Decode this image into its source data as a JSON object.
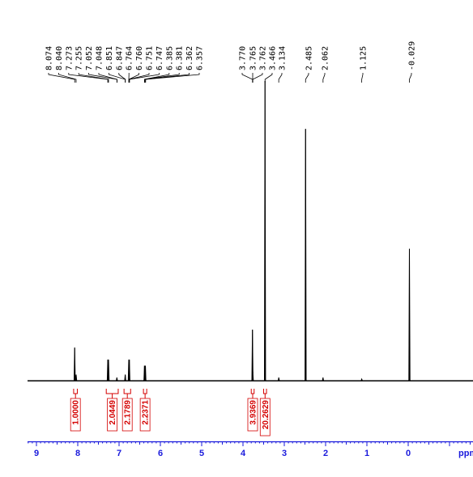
{
  "chart_data": {
    "type": "line",
    "title": "",
    "xlabel": "ppm",
    "ylabel": "",
    "x_reversed": true,
    "xlim": [
      9.0,
      -1.6
    ],
    "x_ticks": [
      "9",
      "8",
      "7",
      "6",
      "5",
      "4",
      "3",
      "2",
      "1",
      "0"
    ],
    "grid": false,
    "colors": {
      "spectrum": "#000000",
      "integral": "#d40000",
      "axis": "#1a1adc"
    },
    "peak_labels": [
      "8.074",
      "8.040",
      "7.273",
      "7.255",
      "7.052",
      "7.048",
      "6.851",
      "6.847",
      "6.764",
      "6.760",
      "6.751",
      "6.747",
      "6.385",
      "6.381",
      "6.362",
      "6.357",
      "3.770",
      "3.765",
      "3.762",
      "3.466",
      "3.134",
      "2.485",
      "2.062",
      "1.125",
      "-0.029"
    ],
    "peaks": [
      {
        "ppm": 8.074,
        "height": 0.11
      },
      {
        "ppm": 8.04,
        "height": 0.02
      },
      {
        "ppm": 7.273,
        "height": 0.07
      },
      {
        "ppm": 7.255,
        "height": 0.07
      },
      {
        "ppm": 7.052,
        "height": 0.01
      },
      {
        "ppm": 6.851,
        "height": 0.02
      },
      {
        "ppm": 6.764,
        "height": 0.07
      },
      {
        "ppm": 6.751,
        "height": 0.07
      },
      {
        "ppm": 6.385,
        "height": 0.05
      },
      {
        "ppm": 6.362,
        "height": 0.05
      },
      {
        "ppm": 3.77,
        "height": 0.17
      },
      {
        "ppm": 3.762,
        "height": 0.03
      },
      {
        "ppm": 3.466,
        "height": 1.0
      },
      {
        "ppm": 3.134,
        "height": 0.01
      },
      {
        "ppm": 2.485,
        "height": 0.84
      },
      {
        "ppm": 2.062,
        "height": 0.01
      },
      {
        "ppm": 1.125,
        "height": 0.005
      },
      {
        "ppm": -0.029,
        "height": 0.44
      }
    ],
    "integrals": [
      {
        "value": "1.0000",
        "from": 8.08,
        "to": 8.03
      },
      {
        "value": "2.0449",
        "from": 7.29,
        "to": 7.04
      },
      {
        "value": "2.1789",
        "from": 6.86,
        "to": 6.74
      },
      {
        "value": "2.2371",
        "from": 6.39,
        "to": 6.35
      },
      {
        "value": "3.9369",
        "from": 3.78,
        "to": 3.75
      },
      {
        "value": "20.2629",
        "from": 3.48,
        "to": 3.45
      }
    ]
  }
}
